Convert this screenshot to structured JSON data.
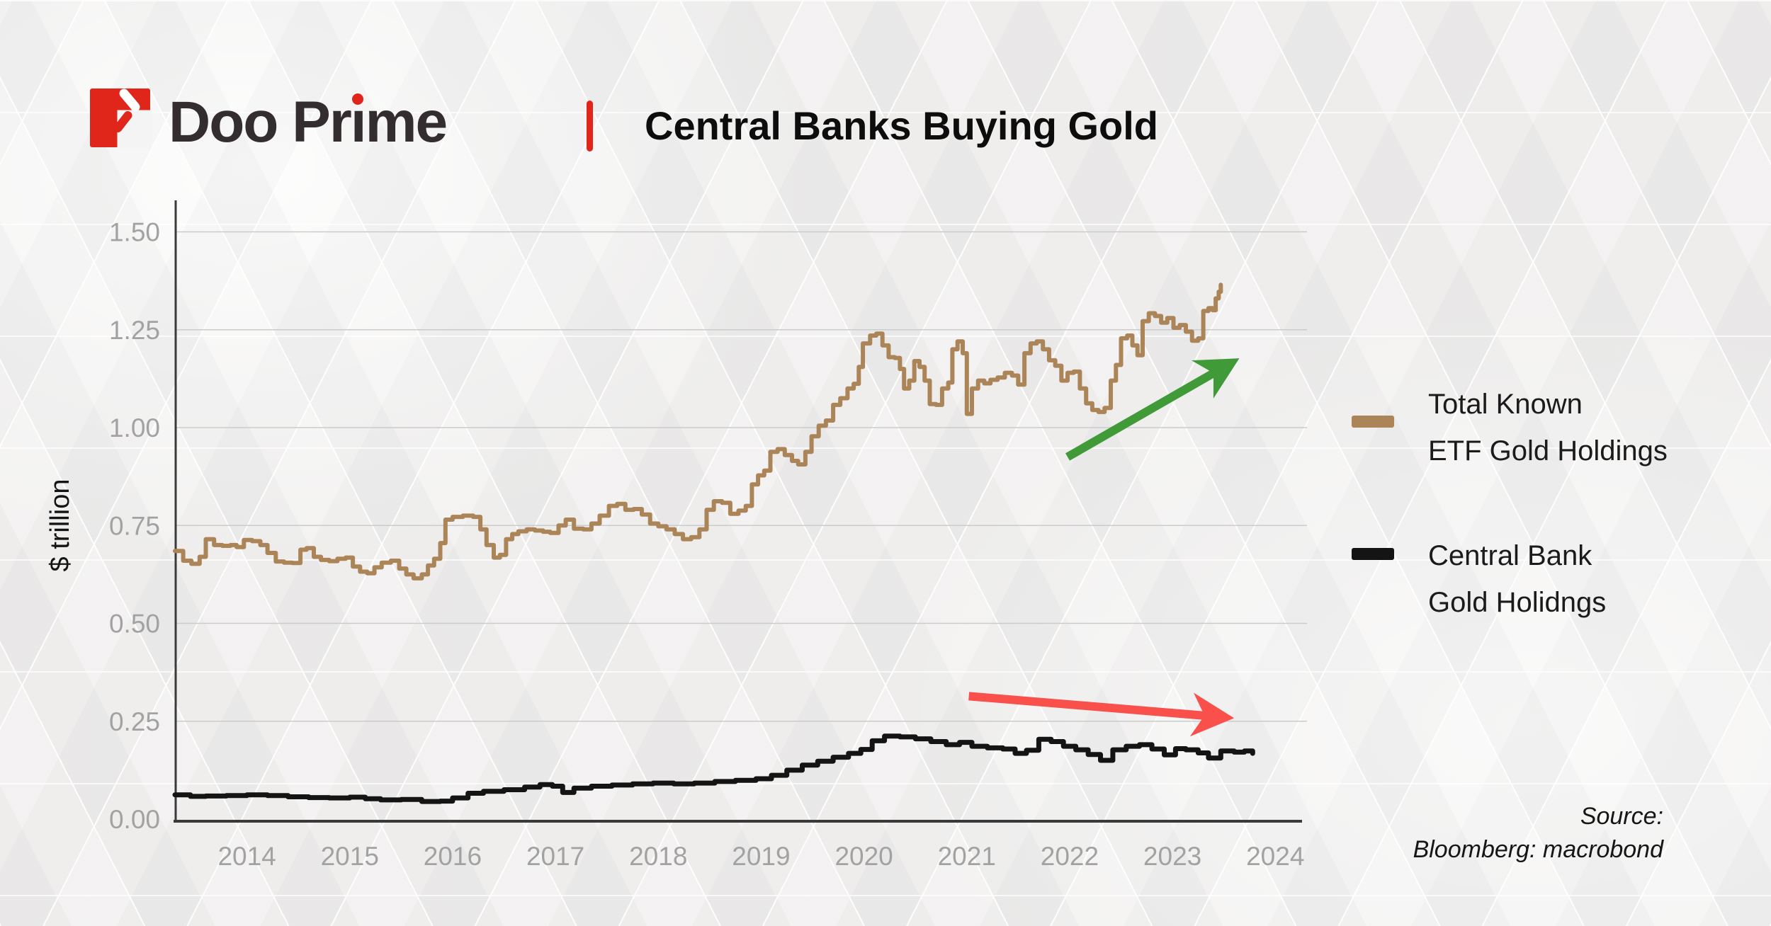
{
  "colors": {
    "brand_red": "#e0251b",
    "text_dark": "#332d2f",
    "gold_line": "#ab8457",
    "black_line": "#141414",
    "green_arrow": "#3f9a37",
    "red_arrow": "#f9504b",
    "axis_dark": "#3a3a3a",
    "grid_gray": "#cbcbcb",
    "tick_gray": "#a2a2a2"
  },
  "brand": {
    "wordmark_pre": "Doo Pr",
    "wordmark_i": "ı",
    "wordmark_post": "me"
  },
  "header": {
    "title": "Central Banks Buying Gold"
  },
  "legend": {
    "items": [
      {
        "line1": "Total Known",
        "line2": "ETF Gold Holdings",
        "color": "#ab8457"
      },
      {
        "line1": "Central Bank",
        "line2": "Gold Holidngs",
        "color": "#141414"
      }
    ]
  },
  "source": {
    "line1": "Source:",
    "line2": "Bloomberg: macrobond"
  },
  "chart_data": {
    "type": "line",
    "title": "Central Banks Buying Gold",
    "xlabel": "",
    "ylabel": "$ trillion",
    "xlim": [
      2013.3,
      2024.26
    ],
    "ylim": [
      0,
      1.5
    ],
    "grid": "horizontal",
    "legend_position": "right",
    "x_ticks": [
      2014,
      2015,
      2016,
      2017,
      2018,
      2019,
      2020,
      2021,
      2022,
      2023,
      2024
    ],
    "y_tick_values": [
      0,
      0.25,
      0.5,
      0.75,
      1.0,
      1.25,
      1.5
    ],
    "y_tick_labels": [
      "0.00",
      "0.25",
      "0.50",
      "0.75",
      "1.00",
      "1.25",
      "1.50"
    ],
    "series": [
      {
        "name": "Total Known ETF Gold Holdings",
        "color": "#ab8457",
        "line_width": 6,
        "interpolation": "step-after",
        "points": [
          [
            2013.3,
            0.685
          ],
          [
            2013.38,
            0.66
          ],
          [
            2013.46,
            0.652
          ],
          [
            2013.54,
            0.67
          ],
          [
            2013.6,
            0.715
          ],
          [
            2013.68,
            0.7
          ],
          [
            2013.76,
            0.698
          ],
          [
            2013.84,
            0.7
          ],
          [
            2013.9,
            0.695
          ],
          [
            2013.97,
            0.713
          ],
          [
            2014.05,
            0.71
          ],
          [
            2014.13,
            0.7
          ],
          [
            2014.2,
            0.68
          ],
          [
            2014.28,
            0.658
          ],
          [
            2014.36,
            0.655
          ],
          [
            2014.44,
            0.654
          ],
          [
            2014.52,
            0.688
          ],
          [
            2014.58,
            0.692
          ],
          [
            2014.65,
            0.67
          ],
          [
            2014.72,
            0.662
          ],
          [
            2014.8,
            0.659
          ],
          [
            2014.88,
            0.665
          ],
          [
            2014.96,
            0.668
          ],
          [
            2015.03,
            0.645
          ],
          [
            2015.1,
            0.632
          ],
          [
            2015.17,
            0.628
          ],
          [
            2015.24,
            0.643
          ],
          [
            2015.31,
            0.655
          ],
          [
            2015.4,
            0.66
          ],
          [
            2015.48,
            0.64
          ],
          [
            2015.55,
            0.625
          ],
          [
            2015.62,
            0.615
          ],
          [
            2015.7,
            0.625
          ],
          [
            2015.76,
            0.648
          ],
          [
            2015.82,
            0.665
          ],
          [
            2015.88,
            0.705
          ],
          [
            2015.93,
            0.765
          ],
          [
            2016.0,
            0.772
          ],
          [
            2016.1,
            0.775
          ],
          [
            2016.2,
            0.772
          ],
          [
            2016.27,
            0.74
          ],
          [
            2016.33,
            0.7
          ],
          [
            2016.4,
            0.668
          ],
          [
            2016.46,
            0.675
          ],
          [
            2016.52,
            0.715
          ],
          [
            2016.58,
            0.728
          ],
          [
            2016.64,
            0.735
          ],
          [
            2016.72,
            0.74
          ],
          [
            2016.8,
            0.737
          ],
          [
            2016.88,
            0.734
          ],
          [
            2016.95,
            0.731
          ],
          [
            2017.03,
            0.75
          ],
          [
            2017.1,
            0.765
          ],
          [
            2017.18,
            0.742
          ],
          [
            2017.27,
            0.74
          ],
          [
            2017.35,
            0.755
          ],
          [
            2017.43,
            0.775
          ],
          [
            2017.52,
            0.8
          ],
          [
            2017.6,
            0.805
          ],
          [
            2017.68,
            0.79
          ],
          [
            2017.76,
            0.792
          ],
          [
            2017.84,
            0.778
          ],
          [
            2017.92,
            0.755
          ],
          [
            2018.0,
            0.748
          ],
          [
            2018.08,
            0.74
          ],
          [
            2018.16,
            0.728
          ],
          [
            2018.24,
            0.715
          ],
          [
            2018.32,
            0.72
          ],
          [
            2018.4,
            0.74
          ],
          [
            2018.47,
            0.79
          ],
          [
            2018.54,
            0.812
          ],
          [
            2018.62,
            0.808
          ],
          [
            2018.7,
            0.78
          ],
          [
            2018.78,
            0.788
          ],
          [
            2018.85,
            0.8
          ],
          [
            2018.91,
            0.855
          ],
          [
            2018.97,
            0.878
          ],
          [
            2019.03,
            0.89
          ],
          [
            2019.09,
            0.938
          ],
          [
            2019.16,
            0.945
          ],
          [
            2019.23,
            0.93
          ],
          [
            2019.3,
            0.915
          ],
          [
            2019.36,
            0.906
          ],
          [
            2019.43,
            0.938
          ],
          [
            2019.49,
            0.978
          ],
          [
            2019.56,
            1.005
          ],
          [
            2019.63,
            1.018
          ],
          [
            2019.7,
            1.058
          ],
          [
            2019.77,
            1.075
          ],
          [
            2019.84,
            1.1
          ],
          [
            2019.9,
            1.112
          ],
          [
            2019.95,
            1.155
          ],
          [
            2019.99,
            1.215
          ],
          [
            2020.06,
            1.235
          ],
          [
            2020.12,
            1.24
          ],
          [
            2020.18,
            1.21
          ],
          [
            2020.24,
            1.18
          ],
          [
            2020.3,
            1.178
          ],
          [
            2020.35,
            1.15
          ],
          [
            2020.39,
            1.1
          ],
          [
            2020.44,
            1.12
          ],
          [
            2020.49,
            1.17
          ],
          [
            2020.54,
            1.155
          ],
          [
            2020.59,
            1.12
          ],
          [
            2020.64,
            1.06
          ],
          [
            2020.7,
            1.058
          ],
          [
            2020.76,
            1.1
          ],
          [
            2020.82,
            1.115
          ],
          [
            2020.86,
            1.2
          ],
          [
            2020.91,
            1.22
          ],
          [
            2020.96,
            1.19
          ],
          [
            2021.0,
            1.035
          ],
          [
            2021.05,
            1.1
          ],
          [
            2021.11,
            1.12
          ],
          [
            2021.17,
            1.113
          ],
          [
            2021.23,
            1.122
          ],
          [
            2021.3,
            1.128
          ],
          [
            2021.37,
            1.14
          ],
          [
            2021.44,
            1.133
          ],
          [
            2021.5,
            1.11
          ],
          [
            2021.56,
            1.19
          ],
          [
            2021.62,
            1.215
          ],
          [
            2021.68,
            1.22
          ],
          [
            2021.74,
            1.2
          ],
          [
            2021.8,
            1.172
          ],
          [
            2021.86,
            1.158
          ],
          [
            2021.92,
            1.12
          ],
          [
            2021.98,
            1.14
          ],
          [
            2022.04,
            1.143
          ],
          [
            2022.1,
            1.1
          ],
          [
            2022.16,
            1.062
          ],
          [
            2022.22,
            1.045
          ],
          [
            2022.28,
            1.04
          ],
          [
            2022.34,
            1.05
          ],
          [
            2022.4,
            1.12
          ],
          [
            2022.45,
            1.16
          ],
          [
            2022.5,
            1.228
          ],
          [
            2022.56,
            1.235
          ],
          [
            2022.61,
            1.21
          ],
          [
            2022.66,
            1.185
          ],
          [
            2022.71,
            1.272
          ],
          [
            2022.77,
            1.292
          ],
          [
            2022.83,
            1.285
          ],
          [
            2022.89,
            1.268
          ],
          [
            2022.95,
            1.28
          ],
          [
            2023.01,
            1.255
          ],
          [
            2023.07,
            1.262
          ],
          [
            2023.13,
            1.245
          ],
          [
            2023.19,
            1.222
          ],
          [
            2023.25,
            1.228
          ],
          [
            2023.3,
            1.298
          ],
          [
            2023.35,
            1.305
          ],
          [
            2023.39,
            1.3
          ],
          [
            2023.42,
            1.33
          ],
          [
            2023.45,
            1.347
          ],
          [
            2023.47,
            1.365
          ]
        ]
      },
      {
        "name": "Central Bank Gold Holidngs",
        "color": "#141414",
        "line_width": 7,
        "interpolation": "step-after",
        "points": [
          [
            2013.3,
            0.062
          ],
          [
            2013.45,
            0.058
          ],
          [
            2013.6,
            0.059
          ],
          [
            2013.8,
            0.06
          ],
          [
            2014.0,
            0.062
          ],
          [
            2014.2,
            0.06
          ],
          [
            2014.4,
            0.057
          ],
          [
            2014.6,
            0.055
          ],
          [
            2014.8,
            0.054
          ],
          [
            2015.0,
            0.056
          ],
          [
            2015.15,
            0.052
          ],
          [
            2015.3,
            0.049
          ],
          [
            2015.5,
            0.05
          ],
          [
            2015.7,
            0.045
          ],
          [
            2015.88,
            0.046
          ],
          [
            2016.0,
            0.054
          ],
          [
            2016.15,
            0.066
          ],
          [
            2016.3,
            0.071
          ],
          [
            2016.5,
            0.075
          ],
          [
            2016.7,
            0.082
          ],
          [
            2016.85,
            0.088
          ],
          [
            2016.97,
            0.084
          ],
          [
            2017.07,
            0.068
          ],
          [
            2017.18,
            0.079
          ],
          [
            2017.35,
            0.084
          ],
          [
            2017.55,
            0.087
          ],
          [
            2017.75,
            0.09
          ],
          [
            2017.95,
            0.092
          ],
          [
            2018.15,
            0.09
          ],
          [
            2018.35,
            0.092
          ],
          [
            2018.55,
            0.096
          ],
          [
            2018.75,
            0.099
          ],
          [
            2018.95,
            0.103
          ],
          [
            2019.1,
            0.112
          ],
          [
            2019.25,
            0.125
          ],
          [
            2019.4,
            0.138
          ],
          [
            2019.55,
            0.148
          ],
          [
            2019.7,
            0.158
          ],
          [
            2019.85,
            0.168
          ],
          [
            2019.97,
            0.178
          ],
          [
            2020.08,
            0.2
          ],
          [
            2020.2,
            0.212
          ],
          [
            2020.35,
            0.21
          ],
          [
            2020.5,
            0.205
          ],
          [
            2020.65,
            0.198
          ],
          [
            2020.8,
            0.19
          ],
          [
            2020.93,
            0.196
          ],
          [
            2021.05,
            0.186
          ],
          [
            2021.2,
            0.182
          ],
          [
            2021.35,
            0.179
          ],
          [
            2021.47,
            0.168
          ],
          [
            2021.58,
            0.176
          ],
          [
            2021.7,
            0.204
          ],
          [
            2021.82,
            0.198
          ],
          [
            2021.94,
            0.186
          ],
          [
            2022.06,
            0.177
          ],
          [
            2022.18,
            0.165
          ],
          [
            2022.3,
            0.15
          ],
          [
            2022.42,
            0.177
          ],
          [
            2022.55,
            0.186
          ],
          [
            2022.68,
            0.19
          ],
          [
            2022.8,
            0.179
          ],
          [
            2022.92,
            0.164
          ],
          [
            2023.03,
            0.18
          ],
          [
            2023.13,
            0.177
          ],
          [
            2023.25,
            0.169
          ],
          [
            2023.35,
            0.156
          ],
          [
            2023.47,
            0.174
          ],
          [
            2023.6,
            0.171
          ],
          [
            2023.7,
            0.174
          ],
          [
            2023.78,
            0.168
          ]
        ]
      }
    ],
    "annotations": [
      {
        "type": "arrow",
        "name": "uptrend-arrow",
        "color": "#3f9a37",
        "from": [
          2021.98,
          0.925
        ],
        "to": [
          2023.65,
          1.177
        ]
      },
      {
        "type": "arrow",
        "name": "downtrend-arrow",
        "color": "#f9504b",
        "from": [
          2021.02,
          0.314
        ],
        "to": [
          2023.6,
          0.258
        ]
      }
    ]
  }
}
